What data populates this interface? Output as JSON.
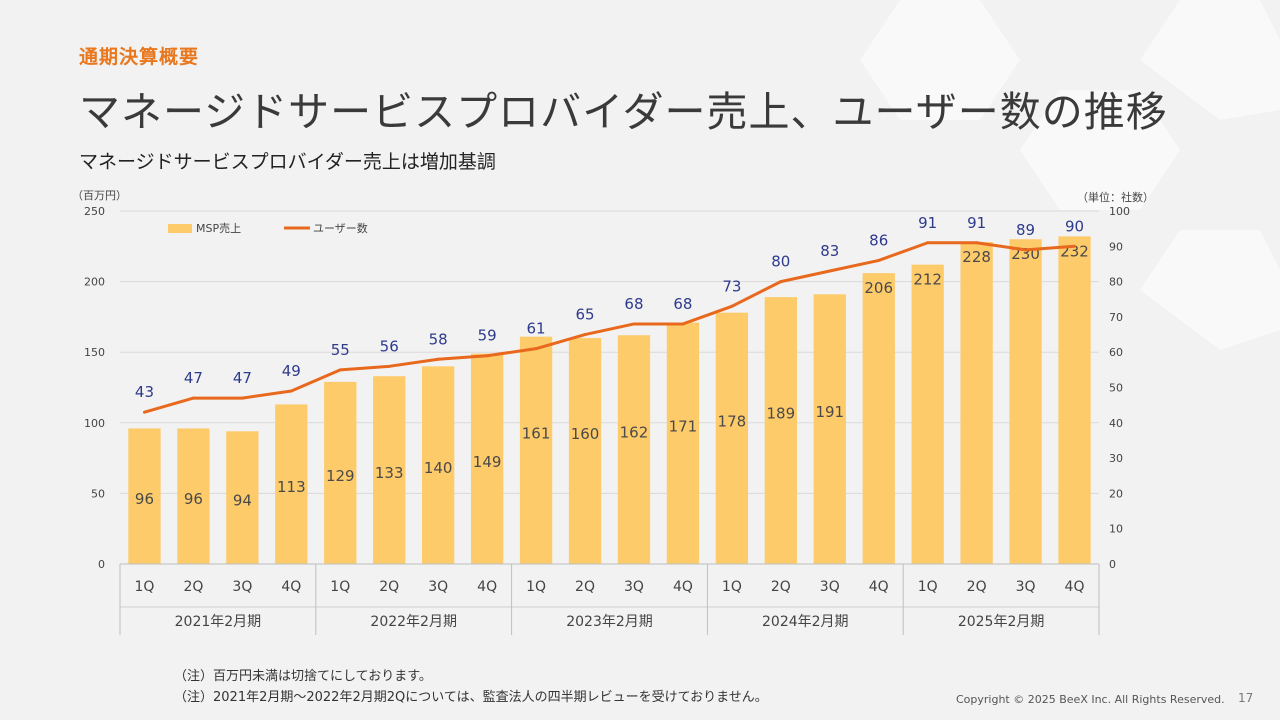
{
  "header": {
    "section_label": "通期決算概要",
    "title": "マネージドサービスプロバイダー売上、ユーザー数の推移",
    "subtitle": "マネージドサービスプロバイダー売上は増加基調"
  },
  "chart_data": {
    "type": "bar+line",
    "left_unit": "（百万円）",
    "right_unit": "（単位：社数）",
    "ylim_left": [
      0,
      250
    ],
    "yticks_left": [
      0,
      50,
      100,
      150,
      200,
      250
    ],
    "ylim_right": [
      0,
      100
    ],
    "yticks_right": [
      0,
      10,
      20,
      30,
      40,
      50,
      60,
      70,
      80,
      90,
      100
    ],
    "legend": {
      "bar": "MSP売上",
      "line": "ユーザー数",
      "placement": "top-left"
    },
    "quarters": [
      "1Q",
      "2Q",
      "3Q",
      "4Q",
      "1Q",
      "2Q",
      "3Q",
      "4Q",
      "1Q",
      "2Q",
      "3Q",
      "4Q",
      "1Q",
      "2Q",
      "3Q",
      "4Q",
      "1Q",
      "2Q",
      "3Q",
      "4Q"
    ],
    "years": [
      "2021年2月期",
      "2022年2月期",
      "2023年2月期",
      "2024年2月期",
      "2025年2月期"
    ],
    "series": [
      {
        "name": "MSP売上",
        "axis": "left",
        "color": "#fecb6a",
        "values": [
          96,
          96,
          94,
          113,
          129,
          133,
          140,
          149,
          161,
          160,
          162,
          171,
          178,
          189,
          191,
          206,
          212,
          228,
          230,
          232
        ]
      },
      {
        "name": "ユーザー数",
        "axis": "right",
        "color": "#e8691d",
        "values": [
          43,
          47,
          47,
          49,
          55,
          56,
          58,
          59,
          61,
          65,
          68,
          68,
          73,
          80,
          83,
          86,
          91,
          91,
          89,
          90
        ]
      }
    ],
    "grid": true
  },
  "notes": [
    "（注）百万円未満は切捨てにしております。",
    "（注）2021年2月期～2022年2月期2Qについては、監査法人の四半期レビューを受けておりません。"
  ],
  "footer": {
    "copyright": "Copyright © 2025  BeeX Inc. All Rights Reserved.",
    "page_number": "17"
  },
  "colors": {
    "accent": "#e8771d",
    "bar_label": "#4a4a4a",
    "line_label": "#2e3a8c"
  }
}
